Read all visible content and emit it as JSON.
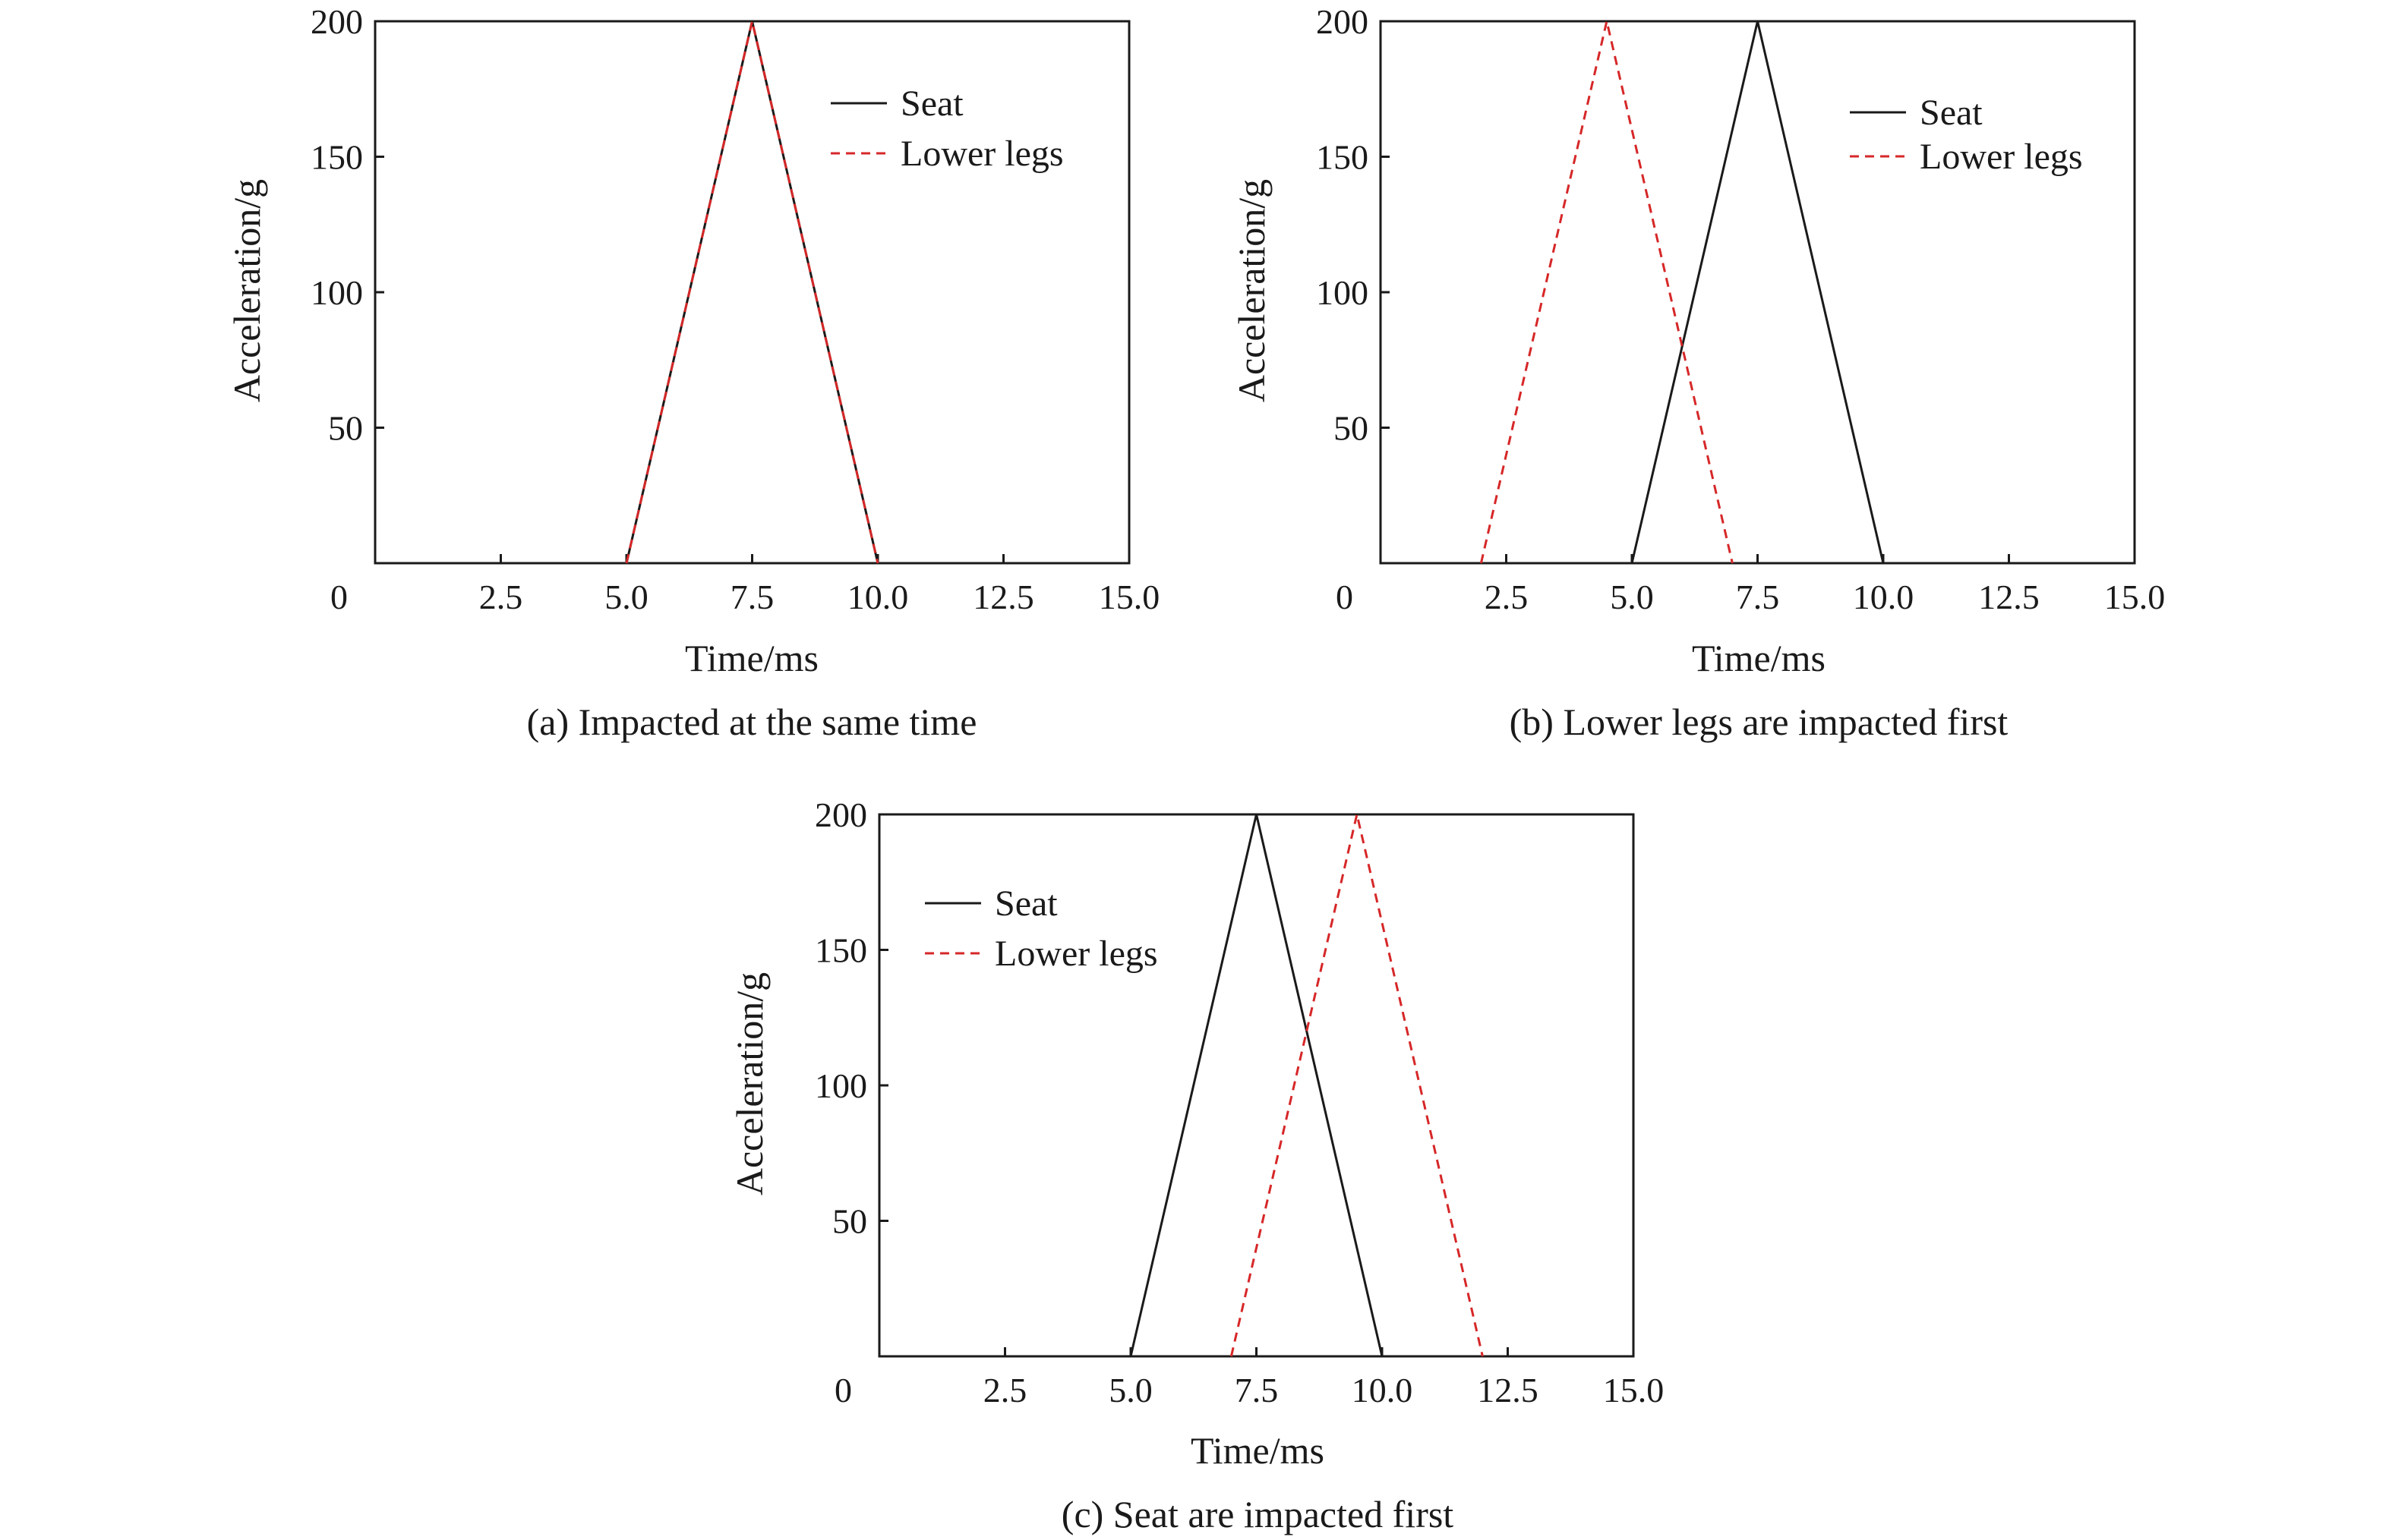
{
  "figure": {
    "colors": {
      "seat": "#1a1a1a",
      "lower_legs": "#d62728",
      "axis": "#1a1a1a"
    }
  },
  "chart_data": [
    {
      "type": "line",
      "caption": "(a) Impacted at the same time",
      "xlabel": "Time/ms",
      "ylabel": "Acceleration/g",
      "xlim": [
        0,
        15
      ],
      "ylim": [
        0,
        200
      ],
      "x_ticks": [
        "0",
        "2.5",
        "5.0",
        "7.5",
        "10.0",
        "12.5",
        "15.0"
      ],
      "x_tick_values": [
        0,
        2.5,
        5,
        7.5,
        10,
        12.5,
        15
      ],
      "y_ticks": [
        "50",
        "100",
        "150",
        "200"
      ],
      "y_tick_values": [
        50,
        100,
        150,
        200
      ],
      "grid": false,
      "legend": "top-right",
      "series": [
        {
          "name": "Seat",
          "style": "solid",
          "color": "#1a1a1a",
          "x": [
            5.0,
            7.5,
            10.0
          ],
          "y": [
            0,
            200,
            0
          ]
        },
        {
          "name": "Lower legs",
          "style": "dashed",
          "color": "#d62728",
          "x": [
            5.0,
            7.5,
            10.0
          ],
          "y": [
            0,
            200,
            0
          ]
        }
      ]
    },
    {
      "type": "line",
      "caption": "(b) Lower legs are impacted first",
      "xlabel": "Time/ms",
      "ylabel": "Acceleration/g",
      "xlim": [
        0,
        15
      ],
      "ylim": [
        0,
        200
      ],
      "x_ticks": [
        "0",
        "2.5",
        "5.0",
        "7.5",
        "10.0",
        "12.5",
        "15.0"
      ],
      "x_tick_values": [
        0,
        2.5,
        5,
        7.5,
        10,
        12.5,
        15
      ],
      "y_ticks": [
        "50",
        "100",
        "150",
        "200"
      ],
      "y_tick_values": [
        50,
        100,
        150,
        200
      ],
      "grid": false,
      "legend": "top-right",
      "series": [
        {
          "name": "Seat",
          "style": "solid",
          "color": "#1a1a1a",
          "x": [
            5.0,
            7.5,
            10.0
          ],
          "y": [
            0,
            200,
            0
          ]
        },
        {
          "name": "Lower legs",
          "style": "dashed",
          "color": "#d62728",
          "x": [
            2.0,
            4.5,
            7.0
          ],
          "y": [
            0,
            200,
            0
          ]
        }
      ]
    },
    {
      "type": "line",
      "caption": "(c) Seat are impacted first",
      "xlabel": "Time/ms",
      "ylabel": "Acceleration/g",
      "xlim": [
        0,
        15
      ],
      "ylim": [
        0,
        200
      ],
      "x_ticks": [
        "0",
        "2.5",
        "5.0",
        "7.5",
        "10.0",
        "12.5",
        "15.0"
      ],
      "x_tick_values": [
        0,
        2.5,
        5,
        7.5,
        10,
        12.5,
        15
      ],
      "y_ticks": [
        "50",
        "100",
        "150",
        "200"
      ],
      "y_tick_values": [
        50,
        100,
        150,
        200
      ],
      "grid": false,
      "legend": "top-left",
      "series": [
        {
          "name": "Seat",
          "style": "solid",
          "color": "#1a1a1a",
          "x": [
            5.0,
            7.5,
            10.0
          ],
          "y": [
            0,
            200,
            0
          ]
        },
        {
          "name": "Lower legs",
          "style": "dashed",
          "color": "#d62728",
          "x": [
            7.0,
            9.5,
            12.0
          ],
          "y": [
            0,
            200,
            0
          ]
        }
      ]
    }
  ]
}
